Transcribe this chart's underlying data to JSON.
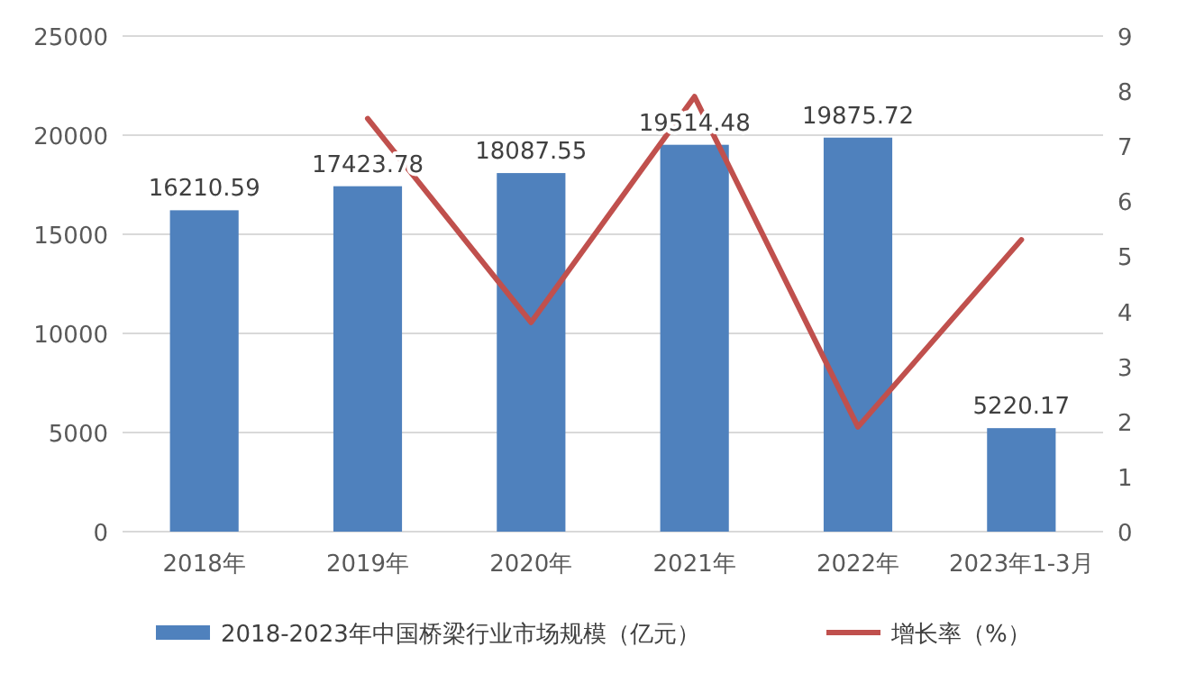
{
  "chart_data": {
    "type": "bar",
    "categories": [
      "2018年",
      "2019年",
      "2020年",
      "2021年",
      "2022年",
      "2023年1-3月"
    ],
    "series": [
      {
        "name": "2018-2023年中国桥梁行业市场规模（亿元）",
        "color": "#4f81bd",
        "values": [
          16210.59,
          17423.78,
          18087.55,
          19514.48,
          19875.72,
          5220.17
        ],
        "value_labels": [
          "16210.59",
          "17423.78",
          "18087.55",
          "19514.48",
          "19875.72",
          "5220.17"
        ]
      },
      {
        "name": "增长率（%）",
        "type": "line",
        "axis": "y2",
        "color": "#c0504d",
        "values": [
          null,
          7.5,
          3.8,
          7.9,
          1.9,
          5.3
        ]
      }
    ],
    "ylim": [
      0,
      25000
    ],
    "yticks": [
      0,
      5000,
      10000,
      15000,
      20000,
      25000
    ],
    "y2lim": [
      0,
      9
    ],
    "y2ticks": [
      0,
      1,
      2,
      3,
      4,
      5,
      6,
      7,
      8,
      9
    ],
    "grid": "y",
    "legend": "bottom",
    "marker": "none",
    "line_style": "solid"
  }
}
